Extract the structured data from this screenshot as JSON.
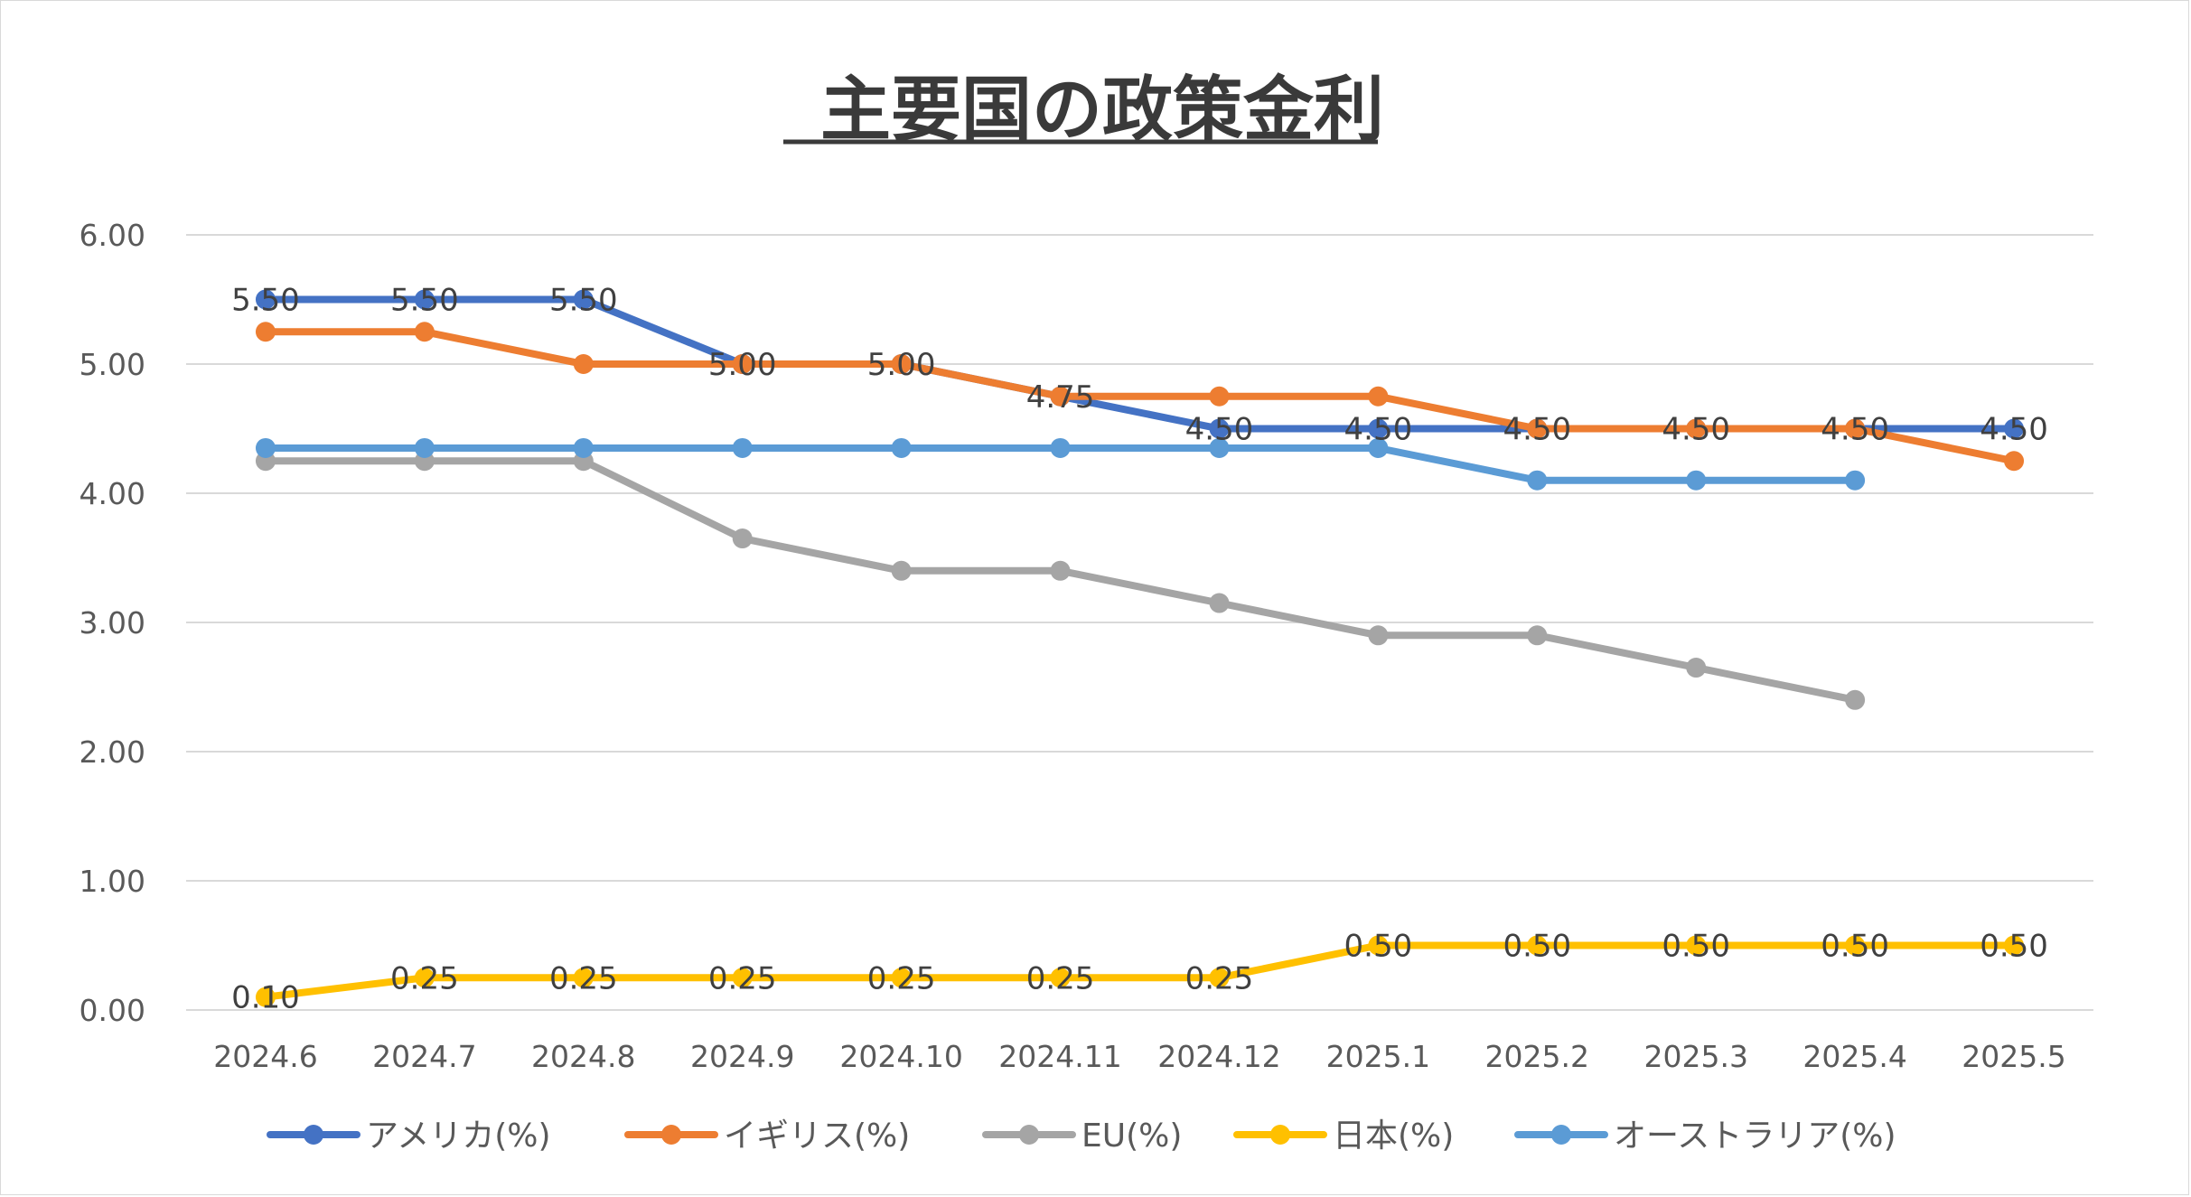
{
  "chart_data": {
    "type": "line",
    "title": "主要国の政策金利",
    "categories": [
      "2024.6",
      "2024.7",
      "2024.8",
      "2024.9",
      "2024.10",
      "2024.11",
      "2024.12",
      "2025.1",
      "2025.2",
      "2025.3",
      "2025.4",
      "2025.5"
    ],
    "ylim": [
      0,
      6
    ],
    "yticks": [
      "0.00",
      "1.00",
      "2.00",
      "3.00",
      "4.00",
      "5.00",
      "6.00"
    ],
    "grid": true,
    "legend_position": "bottom",
    "series": [
      {
        "name": "アメリカ(%)",
        "color": "#4472C4",
        "values": [
          5.5,
          5.5,
          5.5,
          5.0,
          5.0,
          4.75,
          4.5,
          4.5,
          4.5,
          4.5,
          4.5,
          4.5
        ],
        "labels": [
          "5.50",
          "5.50",
          "5.50",
          "5.00",
          "5.00",
          "4.75",
          "4.50",
          "4.50",
          "4.50",
          "4.50",
          "4.50",
          "4.50"
        ]
      },
      {
        "name": "イギリス(%)",
        "color": "#ED7D31",
        "values": [
          5.25,
          5.25,
          5.0,
          5.0,
          5.0,
          4.75,
          4.75,
          4.75,
          4.5,
          4.5,
          4.5,
          4.25
        ],
        "labels": []
      },
      {
        "name": "EU(%)",
        "color": "#A5A5A5",
        "values": [
          4.25,
          4.25,
          4.25,
          3.65,
          3.4,
          3.4,
          3.15,
          2.9,
          2.9,
          2.65,
          2.4,
          null
        ],
        "labels": []
      },
      {
        "name": "日本(%)",
        "color": "#FFC000",
        "values": [
          0.1,
          0.25,
          0.25,
          0.25,
          0.25,
          0.25,
          0.25,
          0.5,
          0.5,
          0.5,
          0.5,
          0.5
        ],
        "labels": [
          "0.10",
          "0.25",
          "0.25",
          "0.25",
          "0.25",
          "0.25",
          "0.25",
          "0.50",
          "0.50",
          "0.50",
          "0.50",
          "0.50"
        ]
      },
      {
        "name": "オーストラリア(%)",
        "color": "#5B9BD5",
        "values": [
          4.35,
          4.35,
          4.35,
          4.35,
          4.35,
          4.35,
          4.35,
          4.35,
          4.1,
          4.1,
          4.1,
          null
        ],
        "labels": []
      }
    ]
  }
}
